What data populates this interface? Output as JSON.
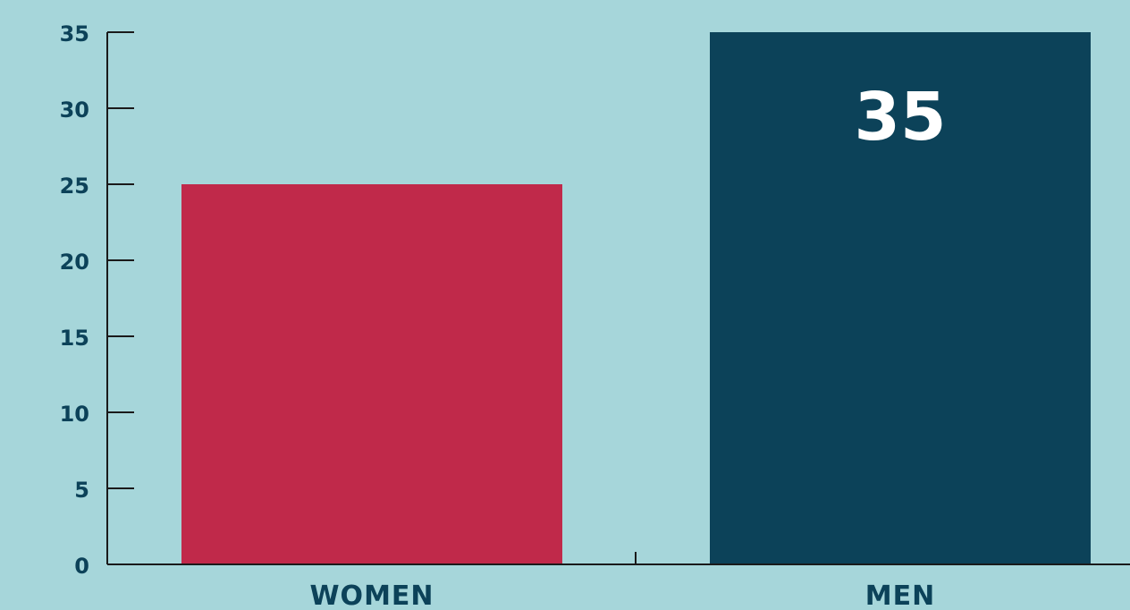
{
  "chart_data": {
    "type": "bar",
    "title": "",
    "xlabel": "",
    "ylabel": "",
    "categories": [
      "WOMEN",
      "MEN"
    ],
    "values": [
      25,
      35
    ],
    "ylim": [
      0,
      35
    ],
    "yticks": [
      "0",
      "5",
      "10",
      "15",
      "20",
      "25",
      "30",
      "35"
    ],
    "data_labels": [
      "",
      "35"
    ],
    "grid": false,
    "legend": "none",
    "colors": {
      "background": "#a6d6da",
      "bars": [
        "#c0294a",
        "#0c4259"
      ],
      "axis": "#1a1a1a",
      "text": "#0c4259",
      "data_label": "#ffffff"
    }
  }
}
